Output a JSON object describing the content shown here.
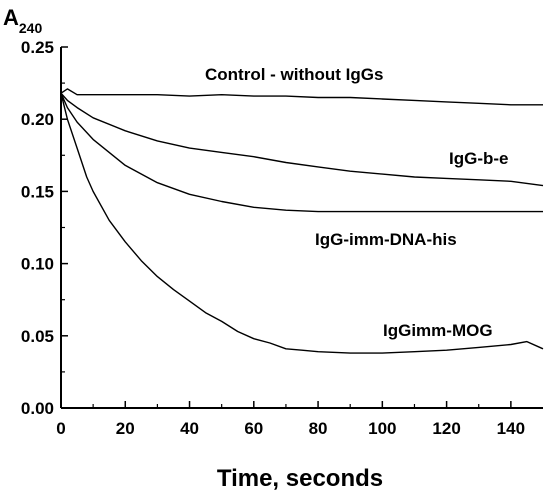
{
  "chart_data": {
    "type": "line",
    "title": "",
    "ylabel": "A",
    "ylabel_subscript": "240",
    "xlabel": "Time, seconds",
    "xlim": [
      0,
      150
    ],
    "ylim": [
      0,
      0.25
    ],
    "x_ticks": [
      "0",
      "20",
      "40",
      "60",
      "80",
      "100",
      "120",
      "140"
    ],
    "y_ticks": [
      "0.00",
      "0.05",
      "0.10",
      "0.15",
      "0.20",
      "0.25"
    ],
    "grid": false,
    "legend": "none",
    "series": [
      {
        "name": "Control - without IgGs",
        "x": [
          0,
          2,
          5,
          10,
          20,
          30,
          40,
          50,
          60,
          70,
          80,
          90,
          100,
          110,
          120,
          130,
          140,
          150
        ],
        "y": [
          0.218,
          0.221,
          0.217,
          0.217,
          0.217,
          0.217,
          0.216,
          0.217,
          0.216,
          0.216,
          0.215,
          0.215,
          0.214,
          0.213,
          0.212,
          0.211,
          0.21,
          0.21
        ]
      },
      {
        "name": "IgG-b-e",
        "x": [
          0,
          2,
          5,
          10,
          20,
          30,
          40,
          50,
          60,
          70,
          80,
          90,
          100,
          110,
          120,
          130,
          140,
          150
        ],
        "y": [
          0.218,
          0.213,
          0.208,
          0.201,
          0.192,
          0.185,
          0.18,
          0.177,
          0.174,
          0.17,
          0.167,
          0.164,
          0.162,
          0.16,
          0.159,
          0.158,
          0.157,
          0.154
        ]
      },
      {
        "name": "IgG-imm-DNA-his",
        "x": [
          0,
          2,
          5,
          10,
          20,
          30,
          40,
          50,
          60,
          70,
          80,
          90,
          100,
          110,
          120,
          130,
          140,
          150
        ],
        "y": [
          0.218,
          0.208,
          0.198,
          0.186,
          0.168,
          0.156,
          0.148,
          0.143,
          0.139,
          0.137,
          0.136,
          0.136,
          0.136,
          0.136,
          0.136,
          0.136,
          0.136,
          0.136
        ]
      },
      {
        "name": "IgGimm-MOG",
        "x": [
          0,
          2,
          5,
          8,
          10,
          15,
          20,
          25,
          30,
          35,
          40,
          45,
          50,
          55,
          60,
          65,
          70,
          75,
          80,
          90,
          100,
          110,
          120,
          130,
          140,
          145,
          150
        ],
        "y": [
          0.218,
          0.2,
          0.18,
          0.16,
          0.15,
          0.13,
          0.115,
          0.102,
          0.091,
          0.082,
          0.074,
          0.066,
          0.06,
          0.053,
          0.048,
          0.045,
          0.041,
          0.04,
          0.039,
          0.038,
          0.038,
          0.039,
          0.04,
          0.042,
          0.044,
          0.046,
          0.041
        ]
      }
    ]
  }
}
